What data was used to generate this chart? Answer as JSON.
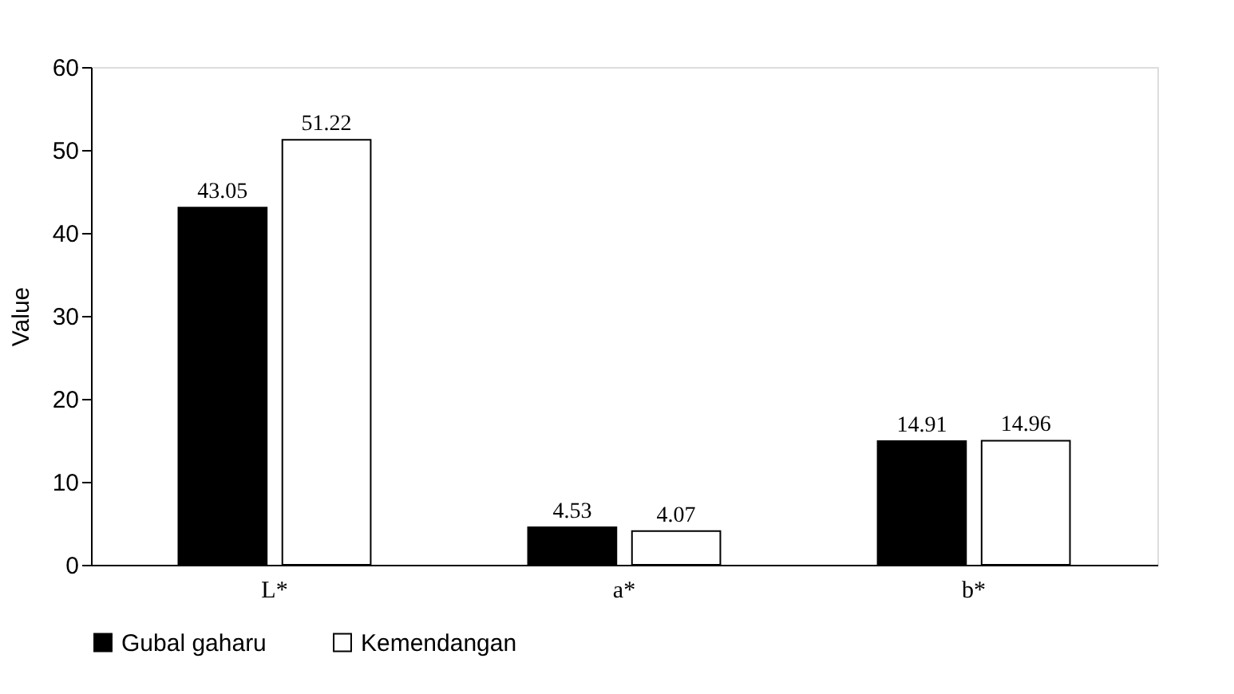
{
  "chart_data": {
    "type": "bar",
    "ylabel": "Value",
    "categories": [
      "L*",
      "a*",
      "b*"
    ],
    "series": [
      {
        "name": "Gubal gaharu",
        "color": "#000000",
        "values": [
          43.05,
          4.53,
          14.91
        ]
      },
      {
        "name": "Kemendangan",
        "color": "#ffffff",
        "values": [
          51.22,
          4.07,
          14.96
        ]
      }
    ],
    "ylim": [
      0,
      60
    ],
    "yticks": [
      0,
      10,
      20,
      30,
      40,
      50,
      60
    ],
    "data_labels": true,
    "grid": false,
    "legend": "bottom"
  }
}
